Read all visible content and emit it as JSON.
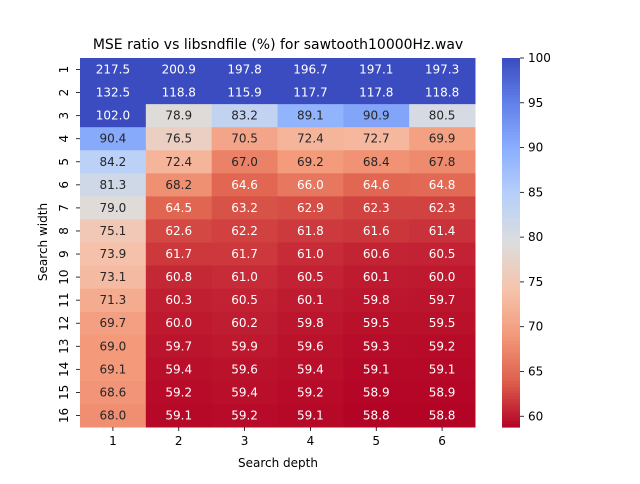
{
  "chart_data": {
    "type": "heatmap",
    "title": "MSE ratio vs libsndfile (%) for sawtooth10000Hz.wav",
    "xlabel": "Search depth",
    "ylabel": "Search width",
    "x_categories": [
      "1",
      "2",
      "3",
      "4",
      "5",
      "6"
    ],
    "y_categories": [
      "1",
      "2",
      "3",
      "4",
      "5",
      "6",
      "7",
      "8",
      "9",
      "10",
      "11",
      "12",
      "13",
      "14",
      "15",
      "16"
    ],
    "values": [
      [
        217.5,
        200.9,
        197.8,
        196.7,
        197.1,
        197.3
      ],
      [
        132.5,
        118.8,
        115.9,
        117.7,
        117.8,
        118.8
      ],
      [
        102.0,
        78.9,
        83.2,
        89.1,
        90.9,
        80.5
      ],
      [
        90.4,
        76.5,
        70.5,
        72.4,
        72.7,
        69.9
      ],
      [
        84.2,
        72.4,
        67.0,
        69.2,
        68.4,
        67.8
      ],
      [
        81.3,
        68.2,
        64.6,
        66.0,
        64.6,
        64.8
      ],
      [
        79.0,
        64.5,
        63.2,
        62.9,
        62.3,
        62.3
      ],
      [
        75.1,
        62.6,
        62.2,
        61.8,
        61.6,
        61.4
      ],
      [
        73.9,
        61.7,
        61.7,
        61.0,
        60.6,
        60.5
      ],
      [
        73.1,
        60.8,
        61.0,
        60.5,
        60.1,
        60.0
      ],
      [
        71.3,
        60.3,
        60.5,
        60.1,
        59.8,
        59.7
      ],
      [
        69.7,
        60.0,
        60.2,
        59.8,
        59.5,
        59.5
      ],
      [
        69.0,
        59.7,
        59.9,
        59.6,
        59.3,
        59.2
      ],
      [
        69.1,
        59.4,
        59.6,
        59.4,
        59.1,
        59.1
      ],
      [
        68.6,
        59.2,
        59.4,
        59.2,
        58.9,
        58.9
      ],
      [
        68.0,
        59.1,
        59.2,
        59.1,
        58.8,
        58.8
      ]
    ],
    "colorbar": {
      "colormap": "coolwarm_r",
      "vmin": 58.8,
      "vmax": 100,
      "ticks": [
        60,
        65,
        70,
        75,
        80,
        85,
        90,
        95,
        100
      ]
    },
    "annotations": "cell values shown with one decimal",
    "grid": false,
    "legend": "colorbar-right"
  }
}
